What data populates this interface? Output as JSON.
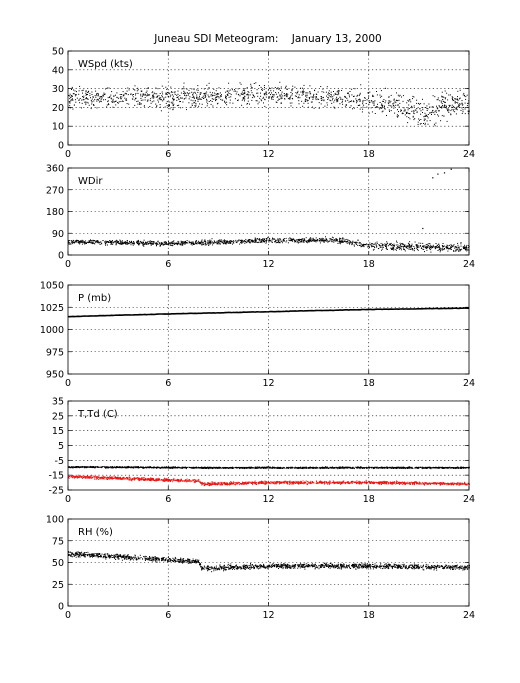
{
  "title": "Juneau SDI Meteogram:    January 13, 2000",
  "chart_data": [
    {
      "type": "scatter",
      "label": "WSpd (kts)",
      "xlim": [
        0,
        24
      ],
      "xticks": [
        0,
        6,
        12,
        18,
        24
      ],
      "ylim": [
        0,
        50
      ],
      "yticks": [
        0,
        10,
        20,
        30,
        40,
        50
      ],
      "grid": true,
      "series": [
        {
          "color": "#000000",
          "trend": [
            [
              0,
              25
            ],
            [
              6,
              25
            ],
            [
              12,
              27
            ],
            [
              18,
              24
            ],
            [
              20.5,
              20
            ],
            [
              21.5,
              17
            ],
            [
              22.5,
              22
            ],
            [
              24,
              21
            ]
          ],
          "spread": [
            [
              0,
              7
            ],
            [
              18,
              8
            ],
            [
              21,
              12
            ],
            [
              24,
              9
            ]
          ],
          "points_per_hour": 55
        }
      ]
    },
    {
      "type": "scatter",
      "label": "WDir",
      "xlim": [
        0,
        24
      ],
      "xticks": [
        0,
        6,
        12,
        18,
        24
      ],
      "ylim": [
        0,
        360
      ],
      "yticks": [
        0,
        90,
        180,
        270,
        360
      ],
      "grid": true,
      "series": [
        {
          "color": "#000000",
          "trend": [
            [
              0,
              55
            ],
            [
              6,
              47
            ],
            [
              12,
              60
            ],
            [
              16,
              62
            ],
            [
              18,
              38
            ],
            [
              24,
              30
            ]
          ],
          "spread": [
            [
              0,
              14
            ],
            [
              17,
              14
            ],
            [
              18.5,
              22
            ],
            [
              24,
              26
            ]
          ],
          "points_per_hour": 60,
          "outliers": [
            [
              21.8,
              320
            ],
            [
              22.1,
              335
            ],
            [
              22.5,
              340
            ],
            [
              22.9,
              355
            ],
            [
              21.2,
              110
            ]
          ]
        }
      ]
    },
    {
      "type": "line",
      "label": "P (mb)",
      "xlim": [
        0,
        24
      ],
      "xticks": [
        0,
        6,
        12,
        18,
        24
      ],
      "ylim": [
        950,
        1050
      ],
      "yticks": [
        950,
        975,
        1000,
        1025,
        1050
      ],
      "grid": true,
      "series": [
        {
          "color": "#000000",
          "x": [
            0,
            6,
            12,
            18,
            24
          ],
          "y": [
            1014.5,
            1017.5,
            1020,
            1022.5,
            1024
          ]
        }
      ]
    },
    {
      "type": "scatter",
      "label": "T,Td (C)",
      "xlim": [
        0,
        24
      ],
      "xticks": [
        0,
        6,
        12,
        18,
        24
      ],
      "ylim": [
        -25,
        35
      ],
      "yticks": [
        -25,
        -15,
        -5,
        5,
        15,
        25,
        35
      ],
      "grid": true,
      "series": [
        {
          "color": "#000000",
          "trend": [
            [
              0,
              -9.5
            ],
            [
              8,
              -10
            ],
            [
              12,
              -10
            ],
            [
              24,
              -10
            ]
          ],
          "spread": [
            [
              0,
              0.7
            ],
            [
              24,
              0.7
            ]
          ],
          "points_per_hour": 70
        },
        {
          "color": "#e8130f",
          "trend": [
            [
              0,
              -16
            ],
            [
              7.8,
              -19
            ],
            [
              8,
              -21
            ],
            [
              12,
              -20
            ],
            [
              18,
              -20
            ],
            [
              24,
              -21
            ]
          ],
          "spread": [
            [
              0,
              1.4
            ],
            [
              24,
              1.4
            ]
          ],
          "points_per_hour": 70
        }
      ]
    },
    {
      "type": "scatter",
      "label": "RH (%)",
      "xlim": [
        0,
        24
      ],
      "xticks": [
        0,
        6,
        12,
        18,
        24
      ],
      "ylim": [
        0,
        100
      ],
      "yticks": [
        0,
        25,
        50,
        75,
        100
      ],
      "grid": true,
      "series": [
        {
          "color": "#000000",
          "trend": [
            [
              0,
              60
            ],
            [
              7.8,
              51
            ],
            [
              8,
              43
            ],
            [
              12,
              46
            ],
            [
              18,
              46
            ],
            [
              24,
              44
            ]
          ],
          "spread": [
            [
              0,
              4
            ],
            [
              24,
              4
            ]
          ],
          "points_per_hour": 70
        }
      ]
    }
  ]
}
